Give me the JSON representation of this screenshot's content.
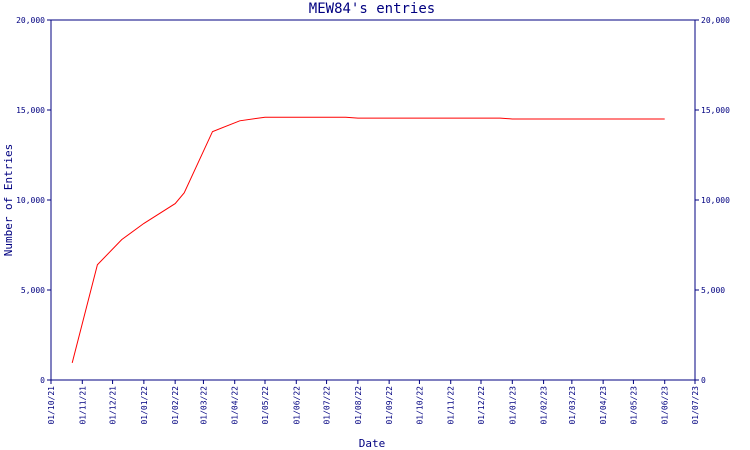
{
  "chart_data": {
    "type": "line",
    "title": "MEW84's entries",
    "xlabel": "Date",
    "ylabel": "Number of Entries",
    "x_ticks": [
      "01/10/21",
      "01/11/21",
      "01/12/21",
      "01/01/22",
      "01/02/22",
      "01/03/22",
      "01/04/22",
      "01/05/22",
      "01/06/22",
      "01/07/22",
      "01/08/22",
      "01/09/22",
      "01/10/22",
      "01/11/22",
      "01/12/22",
      "01/01/23",
      "01/02/23",
      "01/03/23",
      "01/04/23",
      "01/05/23",
      "01/06/23",
      "01/07/23"
    ],
    "y_ticks": [
      "0",
      "5,000",
      "10,000",
      "15,000",
      "20,000"
    ],
    "ylim": [
      0,
      20000
    ],
    "grid": false,
    "series": [
      {
        "color": "#ff0000",
        "points": [
          {
            "x": "2021-10-22",
            "y": 950
          },
          {
            "x": "2021-11-16",
            "y": 6400
          },
          {
            "x": "2021-12-10",
            "y": 7800
          },
          {
            "x": "2022-01-01",
            "y": 8700
          },
          {
            "x": "2022-02-01",
            "y": 9800
          },
          {
            "x": "2022-02-10",
            "y": 10400
          },
          {
            "x": "2022-03-10",
            "y": 13800
          },
          {
            "x": "2022-04-06",
            "y": 14400
          },
          {
            "x": "2022-05-01",
            "y": 14600
          },
          {
            "x": "2022-06-01",
            "y": 14600
          },
          {
            "x": "2022-07-20",
            "y": 14600
          },
          {
            "x": "2022-08-01",
            "y": 14550
          },
          {
            "x": "2022-12-20",
            "y": 14550
          },
          {
            "x": "2023-01-01",
            "y": 14500
          },
          {
            "x": "2023-06-01",
            "y": 14500
          }
        ]
      }
    ]
  }
}
